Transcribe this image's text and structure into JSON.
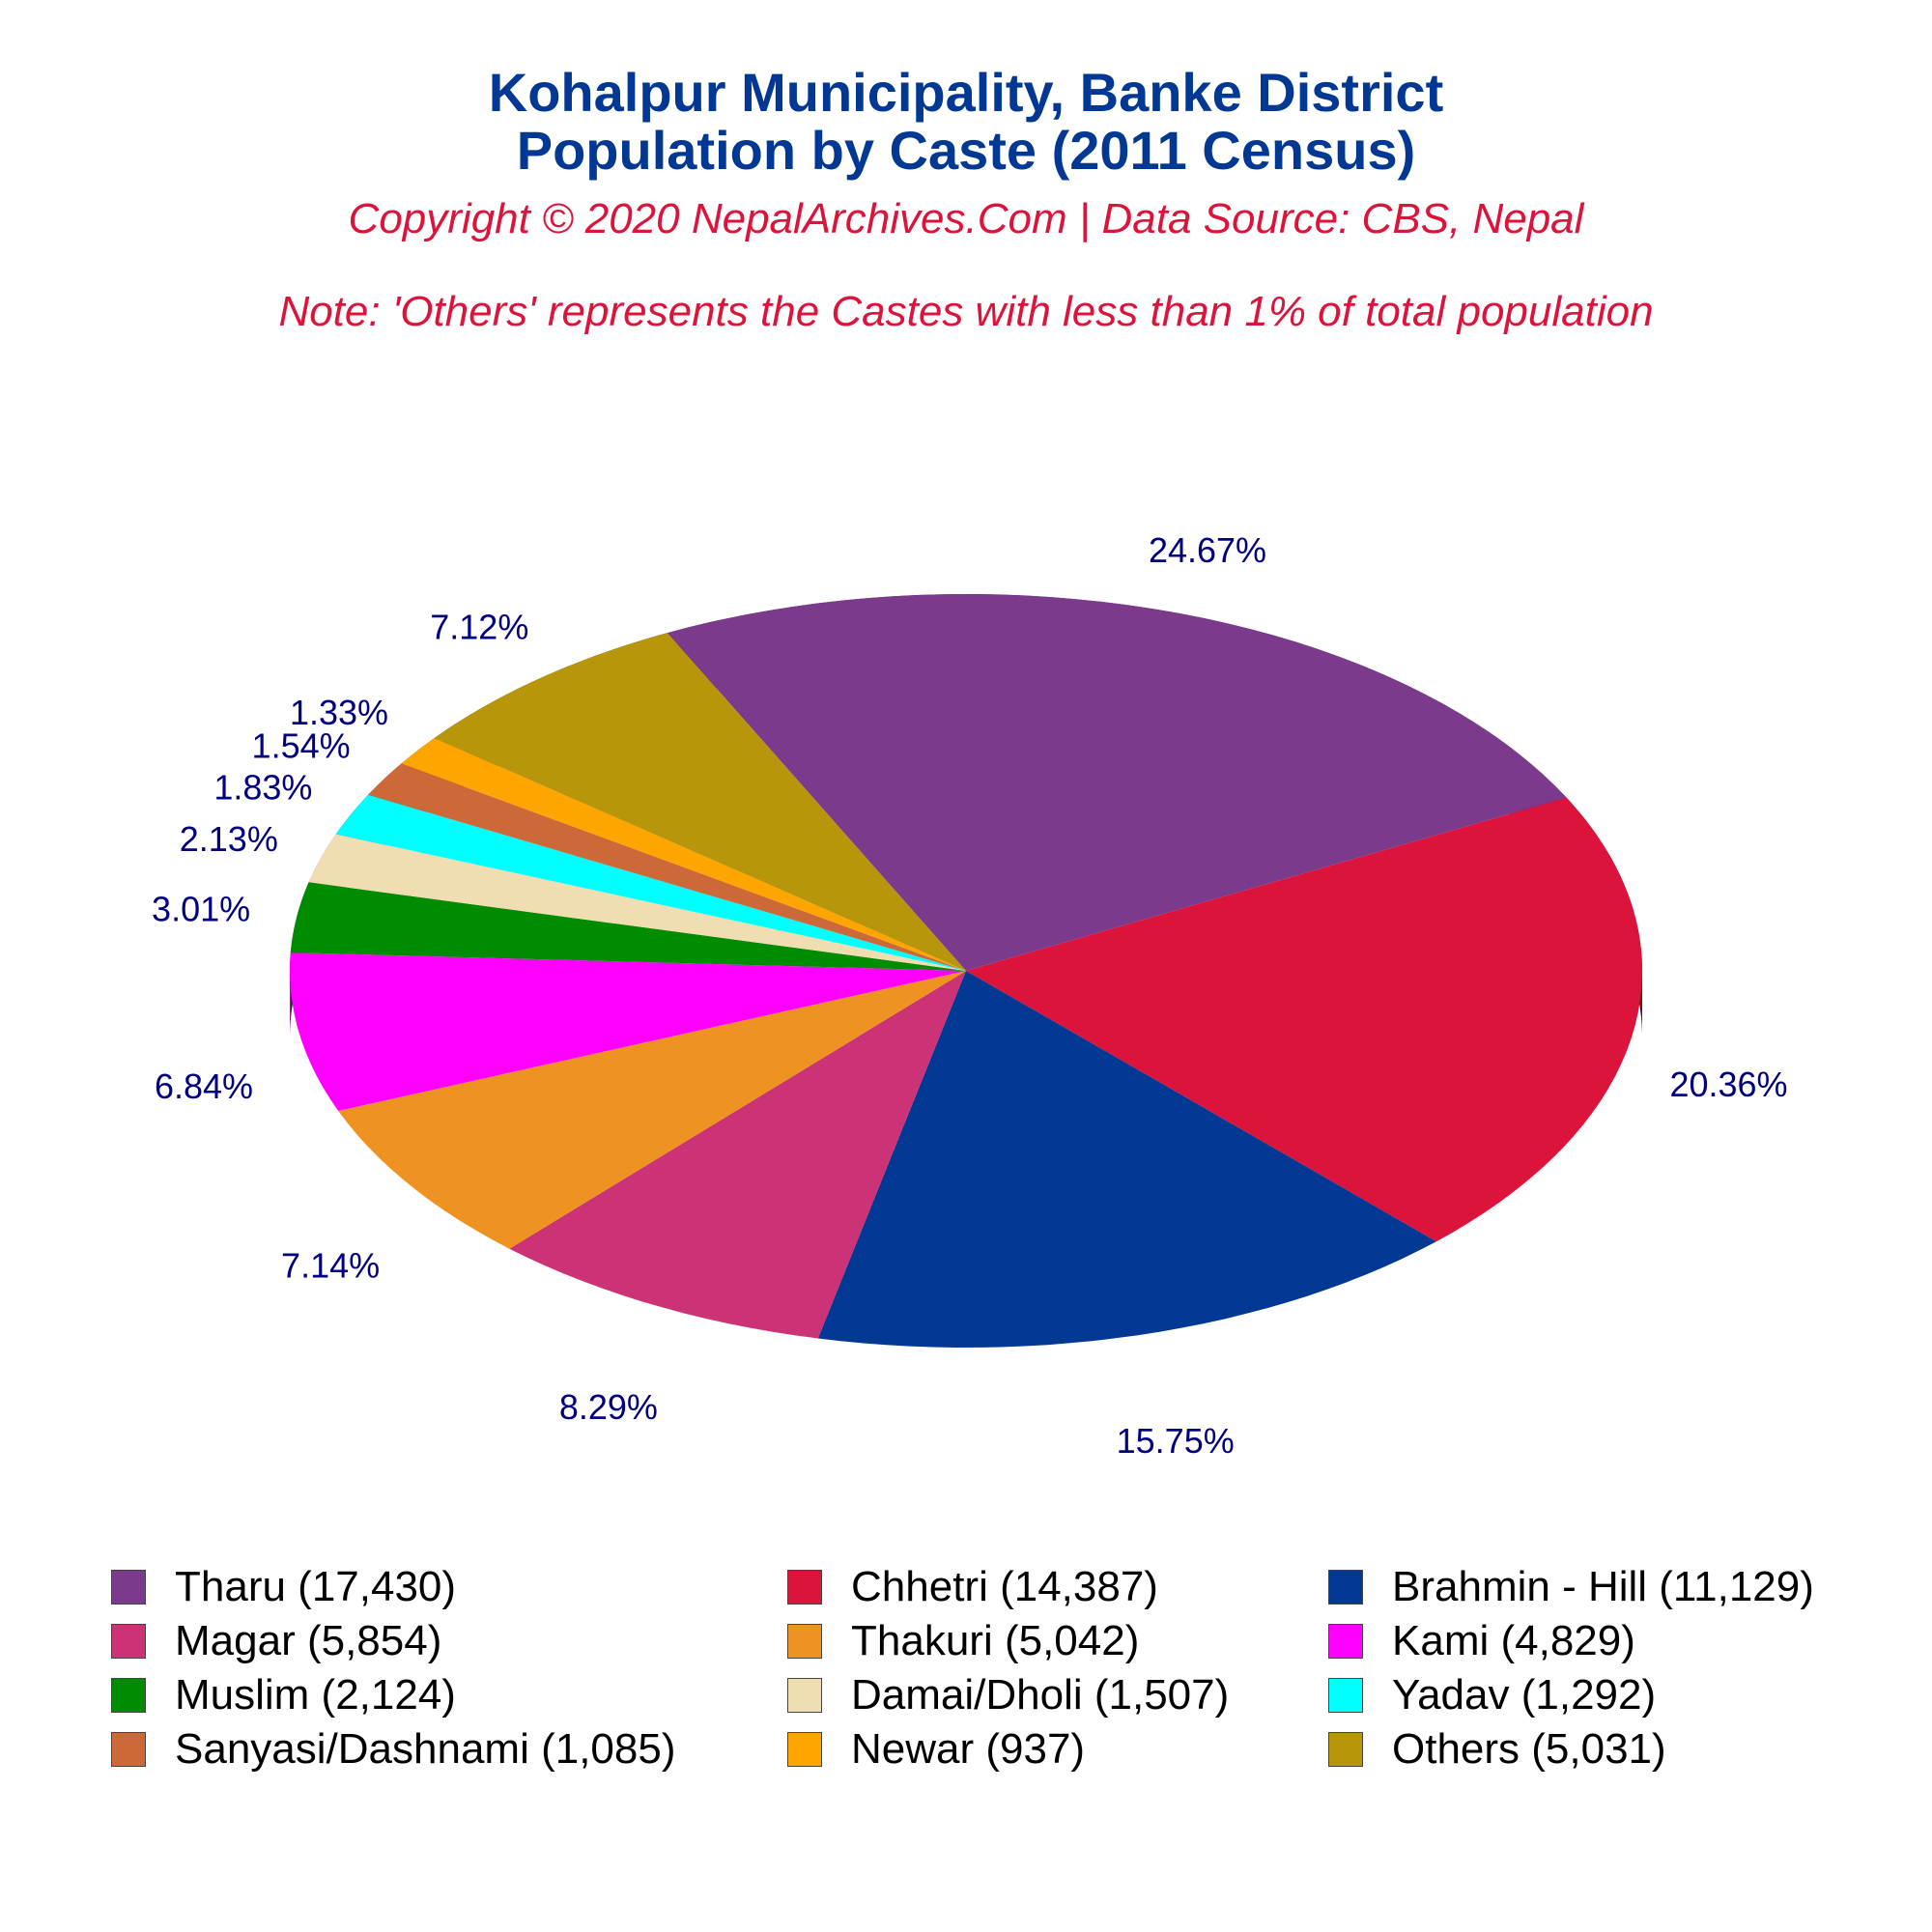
{
  "chart_data": {
    "type": "pie",
    "title": "Kohalpur Municipality, Banke District",
    "title_line2": "Population by Caste (2011 Census)",
    "subtitle": "Copyright © 2020 NepalArchives.Com | Data Source: CBS, Nepal",
    "note": "Note: 'Others' represents the Castes with less than 1% of total population",
    "slices": [
      {
        "name": "Tharu",
        "value": 17430,
        "percent_label": "24.67%",
        "legend_label": "Tharu (17,430)",
        "color": "#7b3a8c"
      },
      {
        "name": "Chhetri",
        "value": 14387,
        "percent_label": "20.36%",
        "legend_label": "Chhetri (14,387)",
        "color": "#dc143c"
      },
      {
        "name": "Brahmin - Hill",
        "value": 11129,
        "percent_label": "15.75%",
        "legend_label": "Brahmin - Hill (11,129)",
        "color": "#003893"
      },
      {
        "name": "Magar",
        "value": 5854,
        "percent_label": "8.29%",
        "legend_label": "Magar (5,854)",
        "color": "#cc3377"
      },
      {
        "name": "Thakuri",
        "value": 5042,
        "percent_label": "7.14%",
        "legend_label": "Thakuri (5,042)",
        "color": "#ee9322"
      },
      {
        "name": "Kami",
        "value": 4829,
        "percent_label": "6.84%",
        "legend_label": "Kami (4,829)",
        "color": "#ff00ff"
      },
      {
        "name": "Muslim",
        "value": 2124,
        "percent_label": "3.01%",
        "legend_label": "Muslim (2,124)",
        "color": "#008c00"
      },
      {
        "name": "Damai/Dholi",
        "value": 1507,
        "percent_label": "2.13%",
        "legend_label": "Damai/Dholi (1,507)",
        "color": "#f0deb2"
      },
      {
        "name": "Yadav",
        "value": 1292,
        "percent_label": "1.83%",
        "legend_label": "Yadav (1,292)",
        "color": "#00ffff"
      },
      {
        "name": "Sanyasi/Dashnami",
        "value": 1085,
        "percent_label": "1.54%",
        "legend_label": "Sanyasi/Dashnami (1,085)",
        "color": "#cd6839"
      },
      {
        "name": "Newar",
        "value": 937,
        "percent_label": "1.33%",
        "legend_label": "Newar (937)",
        "color": "#ffa500"
      },
      {
        "name": "Others",
        "value": 5031,
        "percent_label": "7.12%",
        "legend_label": "Others (5,031)",
        "color": "#b8960b"
      }
    ],
    "legend_order": [
      "Tharu",
      "Chhetri",
      "Brahmin - Hill",
      "Magar",
      "Thakuri",
      "Kami",
      "Muslim",
      "Damai/Dholi",
      "Yadav",
      "Sanyasi/Dashnami",
      "Newar",
      "Others"
    ],
    "legend_placement": "bottom",
    "label_color": "#000080"
  }
}
